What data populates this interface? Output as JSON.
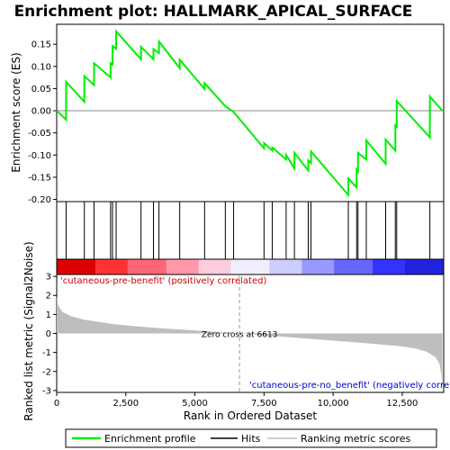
{
  "chart_data": {
    "type": "line",
    "title": "Enrichment plot: HALLMARK_APICAL_SURFACE",
    "xlabel": "Rank in Ordered Dataset",
    "ylabel_top": "Enrichment score (ES)",
    "ylabel_bottom": "Ranked list metric (Signal2Noise)",
    "xlim": [
      0,
      14000
    ],
    "ylim_top": [
      -0.205,
      0.195
    ],
    "ylim_bottom": [
      -3.1,
      3.1
    ],
    "x_ticks": [
      0,
      2500,
      5000,
      7500,
      10000,
      12500
    ],
    "x_tick_labels": [
      "0",
      "2,500",
      "5,000",
      "7,500",
      "10,000",
      "12,500"
    ],
    "y_ticks_top": [
      0.15,
      0.1,
      0.05,
      0.0,
      -0.05,
      -0.1,
      -0.15,
      -0.2
    ],
    "y_tick_labels_top": [
      "0.15",
      "0.10",
      "0.05",
      "0.00",
      "-0.05",
      "-0.10",
      "-0.15",
      "-0.20"
    ],
    "y_ticks_bottom": [
      3,
      2,
      1,
      0,
      -1,
      -2,
      -3
    ],
    "y_tick_labels_bottom": [
      "3",
      "2",
      "1",
      "0",
      "-1",
      "-2",
      "-3"
    ],
    "hits": [
      340,
      1000,
      1350,
      1950,
      2020,
      2150,
      3050,
      3500,
      3700,
      4450,
      5350,
      6100,
      6400,
      7500,
      7800,
      8300,
      8600,
      9100,
      9200,
      10550,
      10850,
      10900,
      11200,
      11900,
      12250,
      12300,
      13500
    ],
    "es_series": [
      [
        0,
        0.0
      ],
      [
        340,
        -0.02
      ],
      [
        341,
        0.065
      ],
      [
        1000,
        0.02
      ],
      [
        1001,
        0.078
      ],
      [
        1350,
        0.058
      ],
      [
        1351,
        0.107
      ],
      [
        1950,
        0.075
      ],
      [
        1951,
        0.107
      ],
      [
        2020,
        0.104
      ],
      [
        2021,
        0.146
      ],
      [
        2150,
        0.14
      ],
      [
        2151,
        0.179
      ],
      [
        3050,
        0.116
      ],
      [
        3051,
        0.144
      ],
      [
        3500,
        0.116
      ],
      [
        3501,
        0.139
      ],
      [
        3700,
        0.13
      ],
      [
        3701,
        0.156
      ],
      [
        4450,
        0.096
      ],
      [
        4451,
        0.115
      ],
      [
        5350,
        0.049
      ],
      [
        5351,
        0.062
      ],
      [
        6100,
        0.01
      ],
      [
        6400,
        -0.003
      ],
      [
        7500,
        -0.085
      ],
      [
        7501,
        -0.073
      ],
      [
        7800,
        -0.09
      ],
      [
        7801,
        -0.083
      ],
      [
        8300,
        -0.11
      ],
      [
        8301,
        -0.1
      ],
      [
        8600,
        -0.13
      ],
      [
        8601,
        -0.095
      ],
      [
        9100,
        -0.135
      ],
      [
        9101,
        -0.112
      ],
      [
        9200,
        -0.118
      ],
      [
        9201,
        -0.092
      ],
      [
        10550,
        -0.19
      ],
      [
        10551,
        -0.153
      ],
      [
        10850,
        -0.173
      ],
      [
        10851,
        -0.133
      ],
      [
        10900,
        -0.137
      ],
      [
        10901,
        -0.095
      ],
      [
        11200,
        -0.11
      ],
      [
        11201,
        -0.067
      ],
      [
        11900,
        -0.12
      ],
      [
        11901,
        -0.065
      ],
      [
        12250,
        -0.09
      ],
      [
        12251,
        -0.033
      ],
      [
        12300,
        -0.036
      ],
      [
        12301,
        0.022
      ],
      [
        13500,
        -0.06
      ],
      [
        13501,
        0.032
      ],
      [
        13950,
        0.0
      ]
    ],
    "metric_profile": [
      [
        0,
        1.95
      ],
      [
        60,
        1.45
      ],
      [
        200,
        1.15
      ],
      [
        500,
        0.92
      ],
      [
        1000,
        0.72
      ],
      [
        2000,
        0.5
      ],
      [
        3000,
        0.36
      ],
      [
        4000,
        0.25
      ],
      [
        5000,
        0.16
      ],
      [
        6000,
        0.06
      ],
      [
        6613,
        0.0
      ],
      [
        7500,
        -0.1
      ],
      [
        8500,
        -0.21
      ],
      [
        9500,
        -0.32
      ],
      [
        10500,
        -0.43
      ],
      [
        11500,
        -0.55
      ],
      [
        12500,
        -0.68
      ],
      [
        13000,
        -0.8
      ],
      [
        13400,
        -0.97
      ],
      [
        13700,
        -1.25
      ],
      [
        13850,
        -1.6
      ],
      [
        13920,
        -2.2
      ],
      [
        13950,
        -3.0
      ]
    ],
    "heat_colors": [
      "#dd0000",
      "#ff3333",
      "#ff6677",
      "#ff99aa",
      "#ffccdd",
      "#eeeeff",
      "#ccccff",
      "#9999ff",
      "#6666ff",
      "#3333ff",
      "#2222dd"
    ],
    "colors": {
      "es_line": "#00ee00",
      "hit_line": "#000000",
      "metric_fill": "#bebebe",
      "zero_cross_line": "#999999",
      "positive_label": "#cc0000",
      "negative_label": "#0000cc"
    },
    "zero_cross_label": "Zero cross at 6613",
    "zero_cross_rank": 6613,
    "positive_label": "'cutaneous-pre-benefit' (positively correlated)",
    "negative_label": "'cutaneous-pre-no_benefit' (negatively correlated)",
    "legend": [
      "Enrichment profile",
      "Hits",
      "Ranking metric scores"
    ]
  }
}
